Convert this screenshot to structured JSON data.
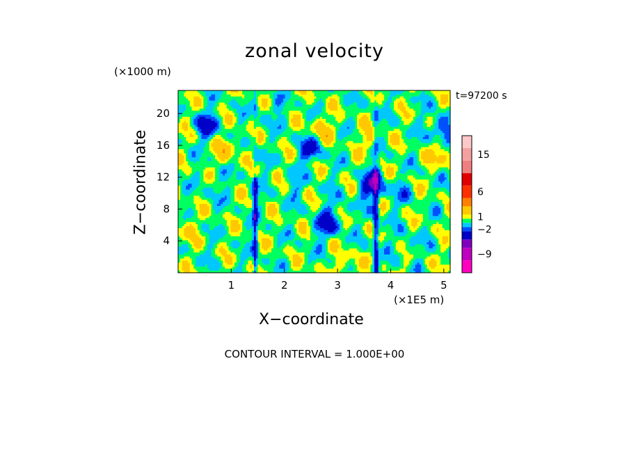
{
  "chart_data": {
    "type": "heatmap",
    "title": "zonal velocity",
    "xlabel": "X−coordinate",
    "ylabel": "Z−coordinate",
    "x_unit": "(×1E5 m)",
    "y_unit": "(×1000 m)",
    "time_label": "t=97200 s",
    "contour_interval_label": "CONTOUR INTERVAL = 1.000E+00",
    "xlim": [
      0,
      5.12
    ],
    "ylim": [
      0,
      22.9
    ],
    "x_ticks": [
      1,
      2,
      3,
      4,
      5
    ],
    "x_tick_labels": [
      "1",
      "2",
      "3",
      "4",
      "5"
    ],
    "y_ticks": [
      4,
      8,
      12,
      16,
      20
    ],
    "y_tick_labels": [
      "4",
      "8",
      "12",
      "16",
      "20"
    ],
    "colorbar": {
      "levels": [
        -12,
        -9,
        -6,
        -4,
        -2,
        -1,
        0,
        1,
        2,
        4,
        6,
        9,
        12,
        15,
        18
      ],
      "tick_values": [
        15,
        6,
        1,
        -2,
        -9
      ],
      "tick_labels": [
        "15",
        "6",
        "1",
        "−2",
        "−9"
      ],
      "colors": [
        "#ff00c0",
        "#c000c0",
        "#8000c0",
        "#0000c8",
        "#0050ff",
        "#00c8ff",
        "#00ff60",
        "#ffff00",
        "#ffc800",
        "#ff8000",
        "#ff3000",
        "#e00000",
        "#f08080",
        "#f4a0a0",
        "#ffc8c8"
      ]
    },
    "features": [
      {
        "x": 0.55,
        "y": 18.5,
        "value": -3
      },
      {
        "x": 2.5,
        "y": 15.5,
        "value": -3
      },
      {
        "x": 2.8,
        "y": 6.0,
        "value": -3
      },
      {
        "x": 3.65,
        "y": 11.0,
        "value": -4
      },
      {
        "x": 4.95,
        "y": 18.0,
        "value": -3
      },
      {
        "x": 0.9,
        "y": 15.5,
        "value": 2
      },
      {
        "x": 2.7,
        "y": 18.0,
        "value": 2
      },
      {
        "x": 4.95,
        "y": 15.0,
        "value": 2
      },
      {
        "x": 0.7,
        "y": 11.0,
        "value": -1
      },
      {
        "x": 2.2,
        "y": 11.0,
        "value": -1
      },
      {
        "x": 4.2,
        "y": 10.0,
        "value": -1
      },
      {
        "x": 4.3,
        "y": 3.5,
        "value": -1
      },
      {
        "x": 1.8,
        "y": 20.5,
        "value": -1
      },
      {
        "x": 3.0,
        "y": 8.0,
        "value": -1
      },
      {
        "x": 3.2,
        "y": 1.0,
        "value": 1.5
      },
      {
        "x": 0.1,
        "y": 5.5,
        "value": 1.5
      },
      {
        "x": 3.6,
        "y": 17.0,
        "value": 1.5
      }
    ]
  }
}
